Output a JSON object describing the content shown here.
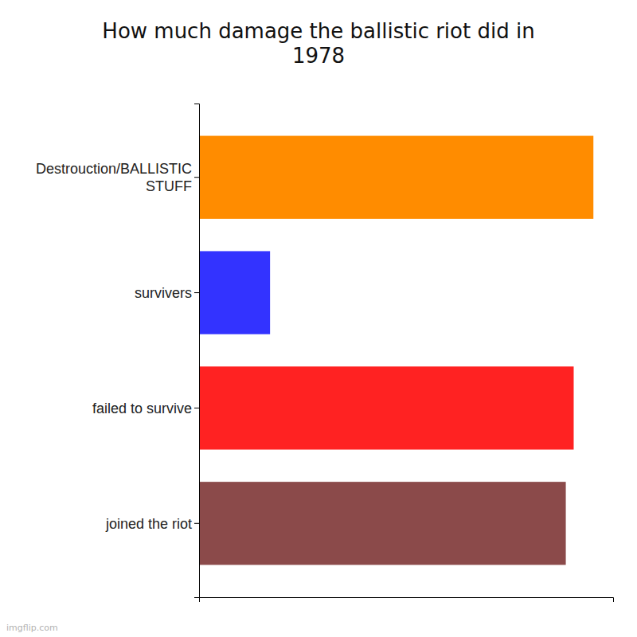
{
  "chart_data": {
    "type": "bar",
    "orientation": "horizontal",
    "title": "How much damage the ballistic riot did in\n1978",
    "categories": [
      "Destrouction/BALLISTIC\nSTUFF",
      "survivers",
      "failed to survive",
      "joined the riot"
    ],
    "values": [
      100,
      18,
      95,
      93
    ],
    "colors": [
      "#ff8c00",
      "#3333ff",
      "#ff2222",
      "#8b4a4a"
    ],
    "xlim": [
      0,
      105
    ],
    "tick_labels": "y",
    "grid": false,
    "annotations": [
      "imgflip.com"
    ]
  }
}
